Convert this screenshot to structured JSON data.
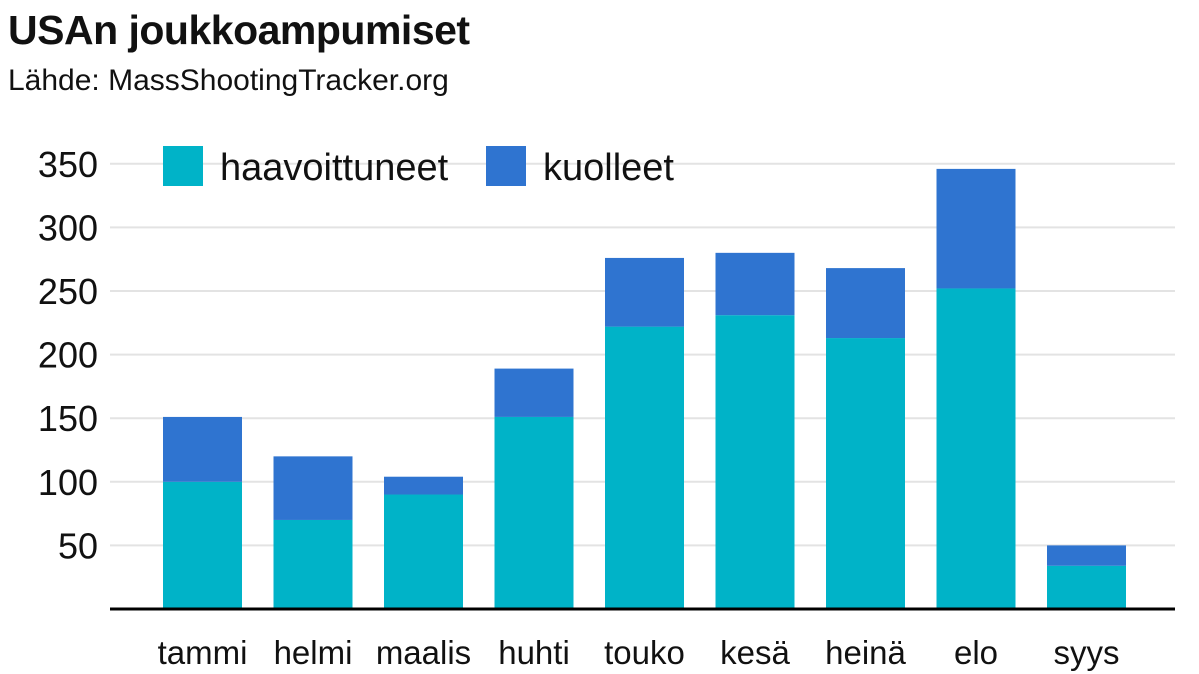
{
  "header": {
    "title": "USAn joukkoampumiset",
    "subtitle": "Lähde: MassShootingTracker.org"
  },
  "colors": {
    "injured": "#00b3c8",
    "killed": "#2f74d0",
    "grid": "#e3e3e3",
    "axis": "#000000"
  },
  "chart_data": {
    "type": "bar",
    "stacked": true,
    "title": "USAn joukkoampumiset",
    "subtitle": "Lähde: MassShootingTracker.org",
    "xlabel": "",
    "ylabel": "",
    "categories": [
      "tammi",
      "helmi",
      "maalis",
      "huhti",
      "touko",
      "kesä",
      "heinä",
      "elo",
      "syys"
    ],
    "series": [
      {
        "name": "haavoittuneet",
        "values": [
          100,
          70,
          90,
          151,
          222,
          231,
          213,
          252,
          34
        ]
      },
      {
        "name": "kuolleet",
        "values": [
          51,
          50,
          14,
          38,
          54,
          49,
          55,
          94,
          16
        ]
      }
    ],
    "ylim": [
      0,
      360
    ],
    "yticks": [
      50,
      100,
      150,
      200,
      250,
      300,
      350
    ],
    "grid": true,
    "legend_position": "top-left"
  }
}
